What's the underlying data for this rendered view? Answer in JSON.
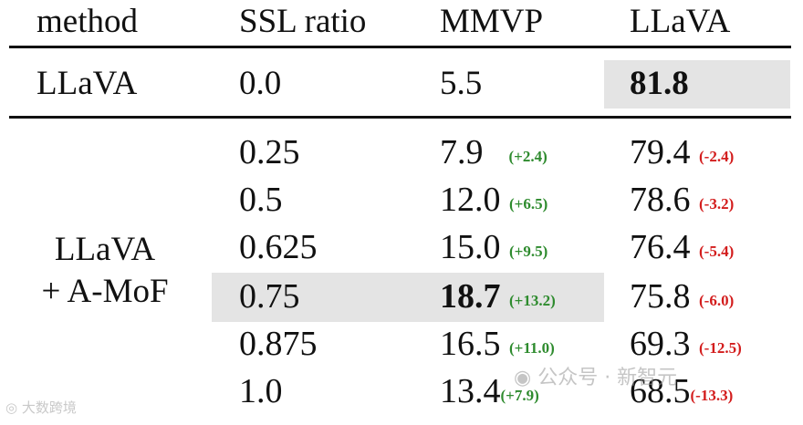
{
  "header": {
    "method": "method",
    "ssl": "SSL ratio",
    "mmvp": "MMVP",
    "llava": "LLaVA"
  },
  "baseline": {
    "method": "LLaVA",
    "ssl": "0.0",
    "mmvp": "5.5",
    "llava": "81.8"
  },
  "group_method": {
    "line1": "LLaVA",
    "line2": "+ A-MoF"
  },
  "rows": [
    {
      "ssl": "0.25",
      "mmvp": "7.9",
      "mmvp_delta": "(+2.4)",
      "llava": "79.4",
      "llava_delta": "(-2.4)"
    },
    {
      "ssl": "0.5",
      "mmvp": "12.0",
      "mmvp_delta": "(+6.5)",
      "llava": "78.6",
      "llava_delta": "(-3.2)"
    },
    {
      "ssl": "0.625",
      "mmvp": "15.0",
      "mmvp_delta": "(+9.5)",
      "llava": "76.4",
      "llava_delta": "(-5.4)"
    },
    {
      "ssl": "0.75",
      "mmvp": "18.7",
      "mmvp_delta": "(+13.2)",
      "llava": "75.8",
      "llava_delta": "(-6.0)"
    },
    {
      "ssl": "0.875",
      "mmvp": "16.5",
      "mmvp_delta": "(+11.0)",
      "llava": "69.3",
      "llava_delta": "(-12.5)"
    },
    {
      "ssl": "1.0",
      "mmvp": "13.4",
      "mmvp_delta": "(+7.9)",
      "llava": "68.5",
      "llava_delta": "(-13.3)"
    }
  ],
  "watermarks": {
    "left": "大数跨境",
    "right": "公众号 · 新智元"
  },
  "colors": {
    "positive": "#2e8b2e",
    "negative": "#d31d1d",
    "highlight": "#e4e4e4"
  }
}
